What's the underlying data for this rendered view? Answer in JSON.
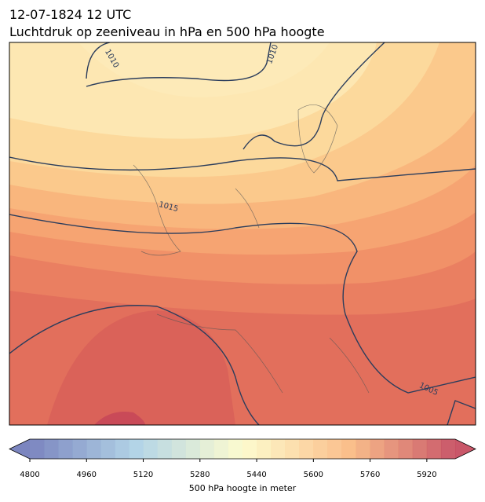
{
  "header": {
    "title": "12-07-1824 12 UTC",
    "subtitle": "Luchtdruk op zeeniveau in hPa en 500 hPa hoogte"
  },
  "map": {
    "isobar_labels": [
      1010,
      1010,
      1015,
      1005
    ]
  },
  "colorbar": {
    "range": [
      4800,
      6000
    ],
    "step": 40,
    "ticks": [
      4800,
      4960,
      5120,
      5280,
      5440,
      5600,
      5760,
      5920
    ],
    "label": "500 hPa hoogte in meter",
    "colors": [
      "#6470b4",
      "#a6cde3",
      "#fdfbc6",
      "#f9b477",
      "#bf3a4f"
    ]
  }
}
